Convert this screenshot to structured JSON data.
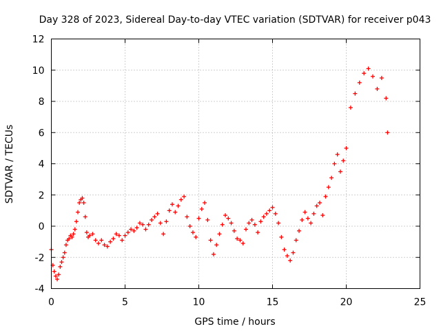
{
  "chart_data": {
    "type": "scatter",
    "title": "Day 328 of 2023, Sidereal Day-to-day VTEC variation (SDTVAR) for receiver p043",
    "xlabel": "GPS time / hours",
    "ylabel": "SDTVAR / TECUs",
    "xlim": [
      0,
      25
    ],
    "ylim": [
      -4,
      12
    ],
    "xticks": [
      0,
      5,
      10,
      15,
      20,
      25
    ],
    "xtick_labels": [
      "0",
      "5",
      "10",
      "15",
      "20",
      "25"
    ],
    "yticks": [
      -4,
      -2,
      0,
      2,
      4,
      6,
      8,
      10,
      12
    ],
    "ytick_labels": [
      "-4",
      "-2",
      "0",
      "2",
      "4",
      "6",
      "8",
      "10",
      "12"
    ],
    "grid": true,
    "marker": "+",
    "color": "#ff0000",
    "series": [
      {
        "name": "SDTVAR",
        "x": [
          0.0,
          0.1,
          0.2,
          0.3,
          0.4,
          0.5,
          0.6,
          0.7,
          0.8,
          0.9,
          1.0,
          1.1,
          1.2,
          1.3,
          1.4,
          1.5,
          1.6,
          1.7,
          1.8,
          1.9,
          2.0,
          2.1,
          2.2,
          2.3,
          2.4,
          2.5,
          2.6,
          2.8,
          3.0,
          3.2,
          3.4,
          3.6,
          3.8,
          4.0,
          4.2,
          4.4,
          4.6,
          4.8,
          5.0,
          5.2,
          5.4,
          5.6,
          5.8,
          6.0,
          6.2,
          6.4,
          6.6,
          6.8,
          7.0,
          7.2,
          7.4,
          7.6,
          7.8,
          8.0,
          8.2,
          8.4,
          8.6,
          8.8,
          9.0,
          9.2,
          9.4,
          9.6,
          9.8,
          10.0,
          10.2,
          10.4,
          10.6,
          10.8,
          11.0,
          11.2,
          11.4,
          11.6,
          11.8,
          12.0,
          12.2,
          12.4,
          12.6,
          12.8,
          13.0,
          13.2,
          13.4,
          13.6,
          13.8,
          14.0,
          14.2,
          14.4,
          14.6,
          14.8,
          15.0,
          15.2,
          15.4,
          15.6,
          15.8,
          16.0,
          16.2,
          16.4,
          16.6,
          16.8,
          17.0,
          17.2,
          17.4,
          17.6,
          17.8,
          18.0,
          18.2,
          18.4,
          18.6,
          18.8,
          19.0,
          19.2,
          19.4,
          19.6,
          19.8,
          20.0,
          20.3,
          20.6,
          20.9,
          21.2,
          21.5,
          21.8,
          22.1,
          22.4,
          22.7,
          22.8
        ],
        "y": [
          -1.5,
          -2.5,
          -2.9,
          -3.2,
          -3.4,
          -3.1,
          -2.6,
          -2.3,
          -2.0,
          -1.7,
          -1.2,
          -0.9,
          -0.8,
          -0.6,
          -0.7,
          -0.5,
          -0.2,
          0.3,
          0.9,
          1.5,
          1.7,
          1.8,
          1.5,
          0.6,
          -0.4,
          -0.7,
          -0.6,
          -0.5,
          -0.9,
          -1.1,
          -0.9,
          -1.2,
          -1.3,
          -1.0,
          -0.8,
          -0.5,
          -0.6,
          -0.9,
          -0.6,
          -0.4,
          -0.2,
          -0.3,
          -0.1,
          0.2,
          0.1,
          -0.2,
          0.1,
          0.4,
          0.6,
          0.8,
          0.2,
          -0.5,
          0.3,
          1.0,
          1.4,
          0.9,
          1.3,
          1.7,
          1.9,
          0.6,
          0.0,
          -0.4,
          -0.7,
          0.5,
          1.1,
          1.5,
          0.4,
          -0.9,
          -1.8,
          -1.2,
          -0.5,
          0.1,
          0.7,
          0.5,
          0.2,
          -0.3,
          -0.8,
          -0.9,
          -1.1,
          -0.2,
          0.2,
          0.4,
          0.1,
          -0.4,
          0.3,
          0.6,
          0.8,
          1.0,
          1.2,
          0.8,
          0.2,
          -0.7,
          -1.5,
          -1.9,
          -2.2,
          -1.7,
          -0.9,
          -0.3,
          0.4,
          0.9,
          0.5,
          0.2,
          0.8,
          1.3,
          1.5,
          0.7,
          1.9,
          2.5,
          3.1,
          4.0,
          4.6,
          3.5,
          4.2,
          5.0,
          7.6,
          8.5,
          9.2,
          9.8,
          10.1,
          9.6,
          8.8,
          9.5,
          8.2,
          6.0
        ]
      }
    ]
  }
}
